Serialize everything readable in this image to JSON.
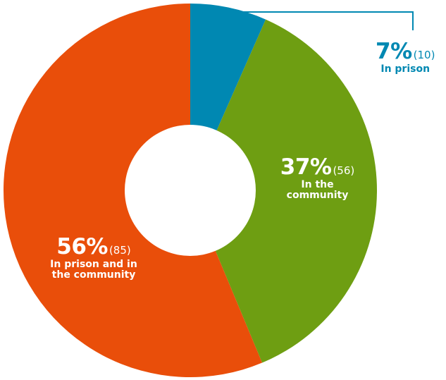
{
  "chart_data": {
    "type": "pie",
    "variant": "donut",
    "title": "",
    "slices": [
      {
        "label": "In prison",
        "percent": 7,
        "percent_text": "7%",
        "count_text": "(10)",
        "category_text": "In prison",
        "color": "#0088B2"
      },
      {
        "label": "In the community",
        "percent": 37,
        "percent_text": "37%",
        "count_text": "(56)",
        "category_text": "In the\ncommunity",
        "color": "#6E9E12"
      },
      {
        "label": "In prison and in the community",
        "percent": 56,
        "percent_text": "56%",
        "count_text": "(85)",
        "category_text": "In prison and in\nthe community",
        "color": "#E94E0A"
      }
    ],
    "counts": [
      10,
      56,
      85
    ],
    "legend": "none",
    "label_colors": {
      "outside": "#0088B2",
      "inside": "#FFFFFF"
    }
  }
}
